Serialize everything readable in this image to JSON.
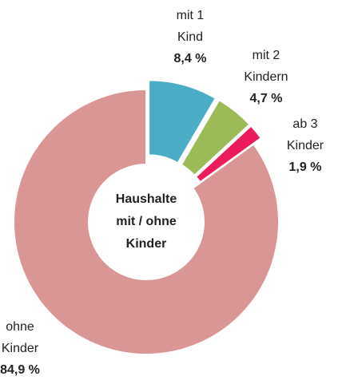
{
  "chart_data": {
    "type": "donut",
    "center_label": [
      "Haushalte",
      "mit / ohne",
      "Kinder"
    ],
    "categories": [
      "mit 1 Kind",
      "mit 2 Kindern",
      "ab 3 Kinder",
      "ohne Kinder"
    ],
    "values": [
      8.4,
      4.7,
      1.9,
      84.9
    ],
    "value_labels": [
      "8,4 %",
      "4,7 %",
      "1,9 %",
      "84,9 %"
    ],
    "colors": [
      "#4bacc6",
      "#9bbb59",
      "#ec1c5c",
      "#d99694"
    ]
  }
}
